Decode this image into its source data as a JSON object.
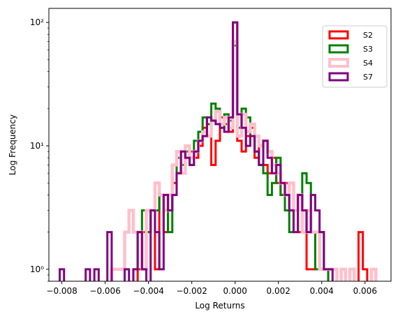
{
  "chart_data": {
    "type": "histogram",
    "title": "",
    "xlabel": "Log Returns",
    "ylabel": "Log Frequency",
    "y_scale": "log",
    "xlim": [
      -0.0086,
      0.0072
    ],
    "ylim": [
      0.8,
      130
    ],
    "x_ticks": [
      -0.008,
      -0.006,
      -0.004,
      -0.002,
      0.0,
      0.002,
      0.004,
      0.006
    ],
    "x_tick_labels": [
      "−0.008",
      "−0.006",
      "−0.004",
      "−0.002",
      "0.000",
      "0.002",
      "0.004",
      "0.006"
    ],
    "y_ticks": [
      1,
      10,
      100
    ],
    "y_tick_labels": [
      "10⁰",
      "10¹",
      "10²"
    ],
    "grid": false,
    "legend_position": "upper right",
    "histtype": "step",
    "series": [
      {
        "name": "S2",
        "color": "#ff0000",
        "points": [
          [
            -0.0044,
            1
          ],
          [
            -0.0042,
            2
          ],
          [
            -0.004,
            2
          ],
          [
            -0.0038,
            3
          ],
          [
            -0.0036,
            1
          ],
          [
            -0.0034,
            4
          ],
          [
            -0.0032,
            2
          ],
          [
            -0.003,
            3
          ],
          [
            -0.0028,
            5
          ],
          [
            -0.0026,
            6
          ],
          [
            -0.0024,
            9
          ],
          [
            -0.0022,
            8
          ],
          [
            -0.002,
            9
          ],
          [
            -0.0018,
            8
          ],
          [
            -0.0016,
            10
          ],
          [
            -0.0014,
            14
          ],
          [
            -0.0012,
            12
          ],
          [
            -0.001,
            7
          ],
          [
            -0.0008,
            11
          ],
          [
            -0.0006,
            17
          ],
          [
            -0.0004,
            15
          ],
          [
            -0.0002,
            13
          ],
          [
            0.0,
            100
          ],
          [
            0.0002,
            11
          ],
          [
            0.0004,
            9
          ],
          [
            0.0006,
            12
          ],
          [
            0.0008,
            14
          ],
          [
            0.001,
            8
          ],
          [
            0.0012,
            10
          ],
          [
            0.0014,
            7
          ],
          [
            0.0016,
            6
          ],
          [
            0.0018,
            8
          ],
          [
            0.002,
            5
          ],
          [
            0.0022,
            4
          ],
          [
            0.0024,
            5
          ],
          [
            0.0026,
            3
          ],
          [
            0.0028,
            3
          ],
          [
            0.003,
            2
          ],
          [
            0.0032,
            2
          ],
          [
            0.0034,
            1
          ],
          [
            0.0036,
            1
          ],
          [
            0.0038,
            2
          ],
          [
            0.004,
            1
          ],
          [
            0.0042,
            1
          ],
          [
            0.0058,
            2
          ],
          [
            0.006,
            1
          ]
        ]
      },
      {
        "name": "S3",
        "color": "#008000",
        "points": [
          [
            -0.0046,
            1
          ],
          [
            -0.0044,
            2
          ],
          [
            -0.0042,
            3
          ],
          [
            -0.004,
            2
          ],
          [
            -0.0038,
            3
          ],
          [
            -0.0036,
            3
          ],
          [
            -0.0034,
            4
          ],
          [
            -0.0032,
            3
          ],
          [
            -0.003,
            2
          ],
          [
            -0.0028,
            4
          ],
          [
            -0.0026,
            8
          ],
          [
            -0.0024,
            7
          ],
          [
            -0.0022,
            9
          ],
          [
            -0.002,
            7
          ],
          [
            -0.0018,
            11
          ],
          [
            -0.0016,
            13
          ],
          [
            -0.0014,
            17
          ],
          [
            -0.0012,
            15
          ],
          [
            -0.001,
            22
          ],
          [
            -0.0008,
            20
          ],
          [
            -0.0006,
            14
          ],
          [
            -0.0004,
            18
          ],
          [
            -0.0002,
            16
          ],
          [
            0.0,
            65
          ],
          [
            0.0002,
            14
          ],
          [
            0.0004,
            20
          ],
          [
            0.0006,
            17
          ],
          [
            0.0008,
            12
          ],
          [
            0.001,
            9
          ],
          [
            0.0012,
            7
          ],
          [
            0.0014,
            6
          ],
          [
            0.0016,
            4
          ],
          [
            0.0018,
            5
          ],
          [
            0.002,
            8
          ],
          [
            0.0022,
            4
          ],
          [
            0.0024,
            3
          ],
          [
            0.0026,
            2
          ],
          [
            0.0028,
            3
          ],
          [
            0.003,
            4
          ],
          [
            0.0032,
            6
          ],
          [
            0.0034,
            5
          ],
          [
            0.0036,
            2
          ],
          [
            0.0038,
            1
          ],
          [
            0.004,
            2
          ],
          [
            0.0042,
            1
          ]
        ]
      },
      {
        "name": "S4",
        "color": "#ffc0cb",
        "points": [
          [
            -0.0056,
            1
          ],
          [
            -0.0054,
            1
          ],
          [
            -0.0052,
            1
          ],
          [
            -0.005,
            2
          ],
          [
            -0.0048,
            3
          ],
          [
            -0.0046,
            2
          ],
          [
            -0.0044,
            2
          ],
          [
            -0.0042,
            1
          ],
          [
            -0.004,
            3
          ],
          [
            -0.0038,
            3
          ],
          [
            -0.0036,
            5
          ],
          [
            -0.0034,
            4
          ],
          [
            -0.0032,
            3
          ],
          [
            -0.003,
            4
          ],
          [
            -0.0028,
            7
          ],
          [
            -0.0026,
            9
          ],
          [
            -0.0024,
            6
          ],
          [
            -0.0022,
            10
          ],
          [
            -0.002,
            8
          ],
          [
            -0.0018,
            9
          ],
          [
            -0.0016,
            11
          ],
          [
            -0.0014,
            13
          ],
          [
            -0.0012,
            12
          ],
          [
            -0.001,
            16
          ],
          [
            -0.0008,
            19
          ],
          [
            -0.0006,
            15
          ],
          [
            -0.0004,
            17
          ],
          [
            -0.0002,
            14
          ],
          [
            0.0,
            70
          ],
          [
            0.0002,
            12
          ],
          [
            0.0004,
            18
          ],
          [
            0.0006,
            13
          ],
          [
            0.0008,
            15
          ],
          [
            0.001,
            12
          ],
          [
            0.0012,
            10
          ],
          [
            0.0014,
            11
          ],
          [
            0.0016,
            9
          ],
          [
            0.0018,
            7
          ],
          [
            0.002,
            6
          ],
          [
            0.0022,
            5
          ],
          [
            0.0024,
            4
          ],
          [
            0.0026,
            5
          ],
          [
            0.0028,
            3
          ],
          [
            0.003,
            4
          ],
          [
            0.0032,
            2
          ],
          [
            0.0034,
            3
          ],
          [
            0.0036,
            2
          ],
          [
            0.0038,
            2
          ],
          [
            0.004,
            1
          ],
          [
            0.0042,
            1
          ],
          [
            0.0044,
            1
          ],
          [
            0.0046,
            1
          ],
          [
            0.005,
            1
          ],
          [
            0.0054,
            1
          ],
          [
            0.0064,
            1
          ]
        ]
      },
      {
        "name": "S7",
        "color": "#800080",
        "points": [
          [
            -0.008,
            1
          ],
          [
            -0.0068,
            1
          ],
          [
            -0.0064,
            1
          ],
          [
            -0.0058,
            2
          ],
          [
            -0.005,
            1
          ],
          [
            -0.0046,
            1
          ],
          [
            -0.0044,
            2
          ],
          [
            -0.0042,
            1
          ],
          [
            -0.0038,
            3
          ],
          [
            -0.0036,
            2
          ],
          [
            -0.0034,
            1
          ],
          [
            -0.0032,
            4
          ],
          [
            -0.003,
            3
          ],
          [
            -0.0028,
            4
          ],
          [
            -0.0026,
            6
          ],
          [
            -0.0024,
            9
          ],
          [
            -0.0022,
            8
          ],
          [
            -0.002,
            7
          ],
          [
            -0.0018,
            9
          ],
          [
            -0.0016,
            11
          ],
          [
            -0.0014,
            12
          ],
          [
            -0.0012,
            17
          ],
          [
            -0.001,
            16
          ],
          [
            -0.0008,
            15
          ],
          [
            -0.0006,
            14
          ],
          [
            -0.0004,
            13
          ],
          [
            -0.0002,
            17
          ],
          [
            0.0,
            100
          ],
          [
            0.0002,
            18
          ],
          [
            0.0004,
            14
          ],
          [
            0.0006,
            10
          ],
          [
            0.0008,
            12
          ],
          [
            0.001,
            9
          ],
          [
            0.0012,
            7
          ],
          [
            0.0014,
            11
          ],
          [
            0.0016,
            8
          ],
          [
            0.0018,
            6
          ],
          [
            0.002,
            7
          ],
          [
            0.0022,
            5
          ],
          [
            0.0024,
            4
          ],
          [
            0.0026,
            3
          ],
          [
            0.0028,
            2
          ],
          [
            0.003,
            4
          ],
          [
            0.0032,
            3
          ],
          [
            0.0034,
            2
          ],
          [
            0.0036,
            4
          ],
          [
            0.0038,
            3
          ],
          [
            0.004,
            2
          ],
          [
            0.0042,
            1
          ],
          [
            0.0044,
            1
          ]
        ]
      }
    ]
  }
}
